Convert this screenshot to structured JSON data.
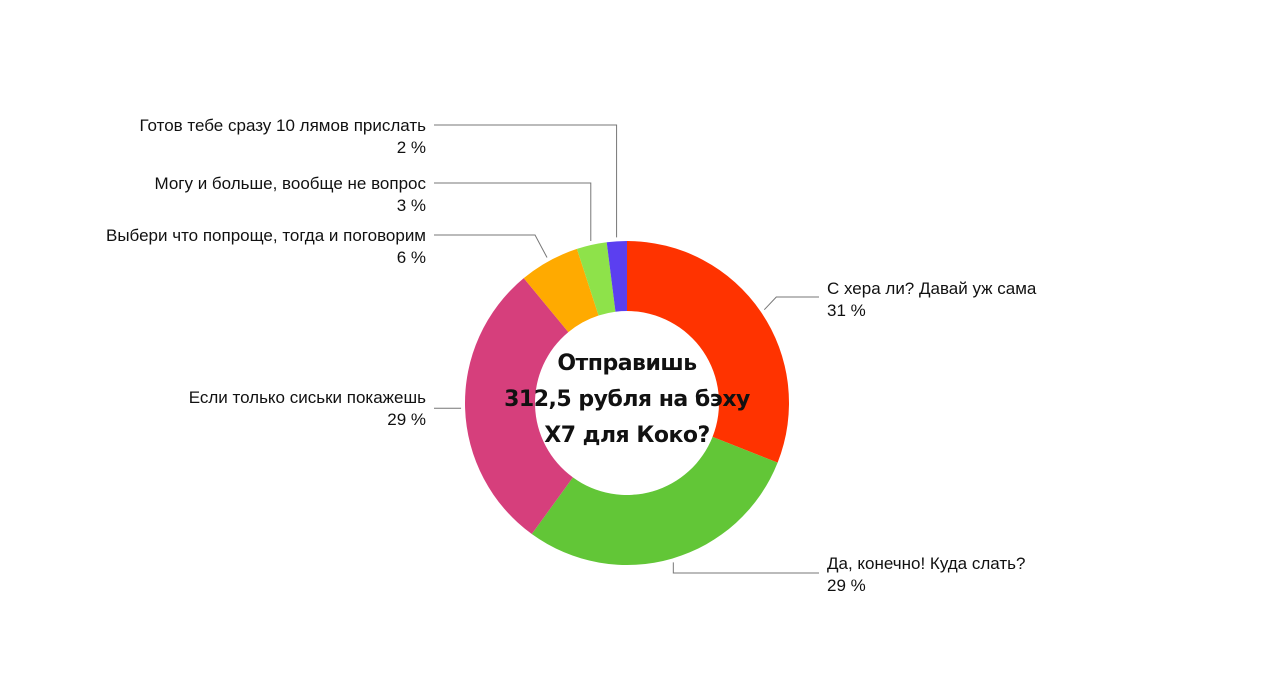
{
  "chart_data": {
    "type": "pie",
    "donut": true,
    "title": "Отправишь 312,5 рубля на бэху Х7 для Коко?",
    "title_lines": [
      "Отправишь",
      "312,5 рубля на бэху",
      "Х7 для Коко?"
    ],
    "slices": [
      {
        "label": "С хера ли? Давай уж сама",
        "value": 31,
        "value_text": "31 %",
        "color": "#FF3300"
      },
      {
        "label": "Да, конечно! Куда слать?",
        "value": 29,
        "value_text": "29 %",
        "color": "#62C637"
      },
      {
        "label": "Если только сиськи покажешь",
        "value": 29,
        "value_text": "29 %",
        "color": "#D63F7C"
      },
      {
        "label": "Выбери что попроще, тогда и поговорим",
        "value": 6,
        "value_text": "6 %",
        "color": "#FFAA00"
      },
      {
        "label": "Могу и больше, вообще не вопрос",
        "value": 3,
        "value_text": "3 %",
        "color": "#8EE24A"
      },
      {
        "label": "Готов тебе сразу 10 лямов прислать",
        "value": 2,
        "value_text": "2 %",
        "color": "#5B3FF0"
      }
    ]
  }
}
